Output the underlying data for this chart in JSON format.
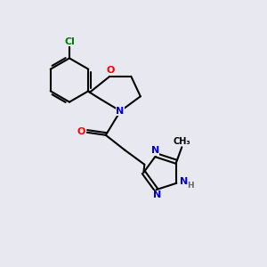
{
  "background_color": "#e8e8f0",
  "bond_color": "#000000",
  "atom_colors": {
    "O": "#ff0000",
    "N": "#0000cd",
    "Cl": "#008000",
    "C": "#000000",
    "H": "#666666"
  },
  "figsize": [
    3.0,
    3.0
  ],
  "dpi": 100
}
